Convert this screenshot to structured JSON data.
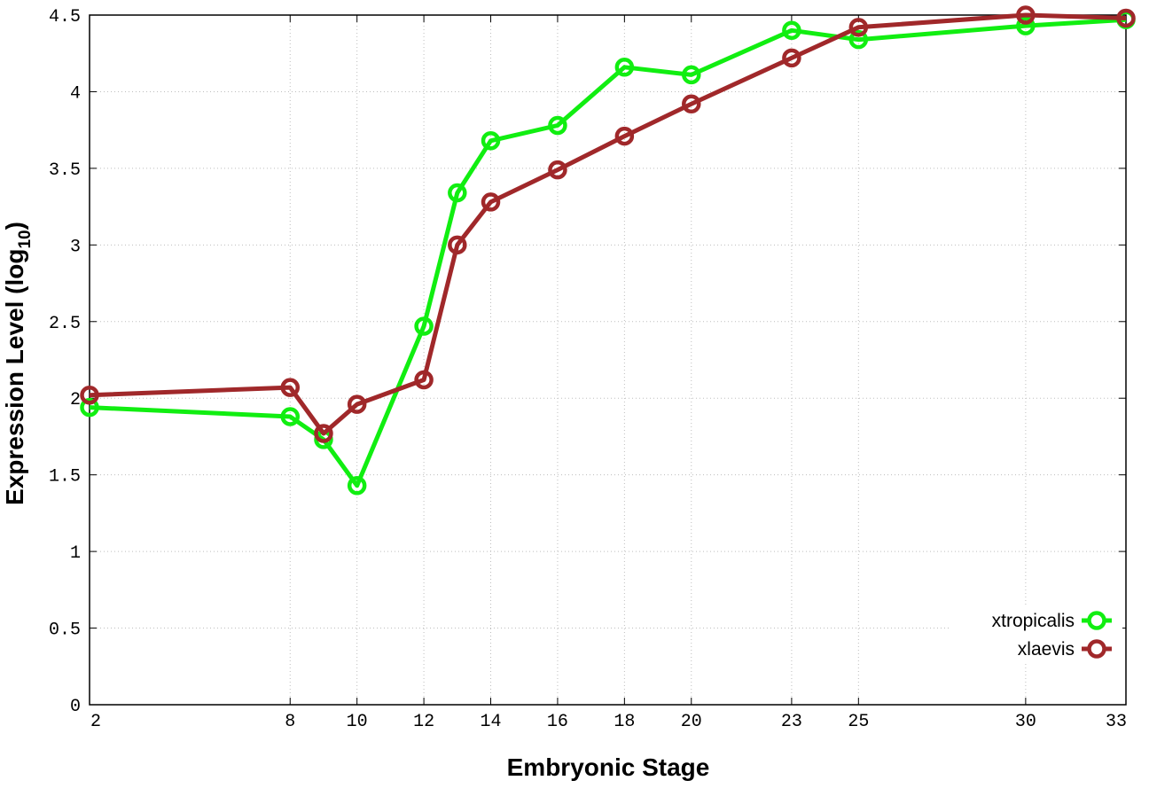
{
  "chart_data": {
    "type": "line",
    "title": "",
    "xlabel": "Embryonic Stage",
    "ylabel_main": "Expression Level (log",
    "ylabel_sub": "10",
    "ylabel_close": ")",
    "x_ticks": [
      "2",
      "8",
      "10",
      "12",
      "14",
      "16",
      "18",
      "20",
      "23",
      "25",
      "30",
      "33"
    ],
    "y_ticks": [
      "0",
      "0.5",
      "1",
      "1.5",
      "2",
      "2.5",
      "3",
      "3.5",
      "4",
      "4.5"
    ],
    "ylim": [
      0,
      4.5
    ],
    "grid": true,
    "legend_position": "bottom-right",
    "series": [
      {
        "name": "xtropicalis",
        "color": "#11ee11",
        "x": [
          2,
          8,
          9,
          10,
          12,
          13,
          14,
          16,
          18,
          20,
          23,
          25,
          30,
          33
        ],
        "y": [
          1.94,
          1.88,
          1.73,
          1.43,
          2.47,
          3.34,
          3.68,
          3.78,
          4.16,
          4.11,
          4.4,
          4.34,
          4.43,
          4.47
        ]
      },
      {
        "name": "xlaevis",
        "color": "#a0282a",
        "x": [
          2,
          8,
          9,
          10,
          12,
          13,
          14,
          16,
          18,
          20,
          23,
          25,
          30,
          33
        ],
        "y": [
          2.02,
          2.07,
          1.77,
          1.96,
          2.12,
          3.0,
          3.28,
          3.49,
          3.71,
          3.92,
          4.22,
          4.42,
          4.5,
          4.48
        ]
      }
    ]
  }
}
